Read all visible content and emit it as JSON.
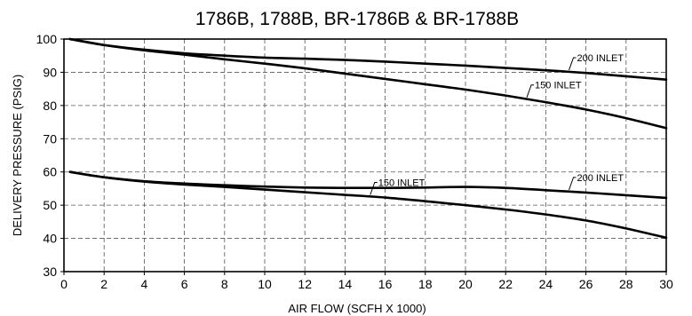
{
  "chart_data": {
    "type": "line",
    "title": "1786B, 1788B, BR-1786B & BR-1788B",
    "xlabel": "AIR FLOW (SCFH X 1000)",
    "ylabel": "DELIVERY PRESSURE (PSIG)",
    "xlim": [
      0,
      30
    ],
    "ylim": [
      30,
      100
    ],
    "xticks": [
      "0",
      "2",
      "4",
      "6",
      "8",
      "10",
      "12",
      "14",
      "16",
      "18",
      "20",
      "22",
      "24",
      "26",
      "28",
      "30"
    ],
    "yticks": [
      "30",
      "40",
      "50",
      "60",
      "70",
      "80",
      "90",
      "100"
    ],
    "grid": true,
    "series": [
      {
        "name": "200 INLET",
        "x": [
          0.3,
          2,
          4,
          6,
          8,
          10,
          12,
          14,
          16,
          18,
          20,
          22,
          24,
          26,
          28,
          30
        ],
        "y": [
          100,
          98.2,
          96.8,
          95.7,
          95,
          94.4,
          94.1,
          93.7,
          93.2,
          92.6,
          92,
          91.3,
          90.6,
          89.8,
          88.8,
          87.8
        ]
      },
      {
        "name": "150 INLET",
        "x": [
          0.3,
          2,
          4,
          6,
          8,
          10,
          12,
          14,
          16,
          18,
          20,
          22,
          24,
          26,
          28,
          30
        ],
        "y": [
          100,
          98.2,
          96.6,
          95.3,
          93.9,
          92.6,
          91.2,
          89.6,
          88,
          86.4,
          84.8,
          83,
          81,
          78.8,
          76.2,
          73.2
        ]
      },
      {
        "name": "200 INLET",
        "x": [
          0.3,
          2,
          4,
          6,
          8,
          10,
          12,
          14,
          16,
          18,
          20,
          22,
          24,
          26,
          28,
          30
        ],
        "y": [
          60,
          58.4,
          57.2,
          56.5,
          56,
          55.6,
          55.3,
          55.2,
          55.2,
          55.3,
          55.5,
          55.2,
          54.5,
          53.8,
          53,
          52.2
        ]
      },
      {
        "name": "150 INLET",
        "x": [
          0.3,
          2,
          4,
          6,
          8,
          10,
          12,
          14,
          16,
          18,
          20,
          22,
          24,
          26,
          28,
          30
        ],
        "y": [
          60,
          58.4,
          57.1,
          56.2,
          55.5,
          54.7,
          53.9,
          53.1,
          52.3,
          51.2,
          50,
          48.7,
          47.2,
          45.4,
          43,
          40.2
        ]
      }
    ],
    "annotations": [
      {
        "text": "200 INLET",
        "series_index": 0,
        "at_x": 25.2
      },
      {
        "text": "150 INLET",
        "series_index": 1,
        "at_x": 23.1
      },
      {
        "text": "150 INLET",
        "series_index": 3,
        "at_x": 15.3
      },
      {
        "text": "200 INLET",
        "series_index": 2,
        "at_x": 25.2
      }
    ]
  }
}
